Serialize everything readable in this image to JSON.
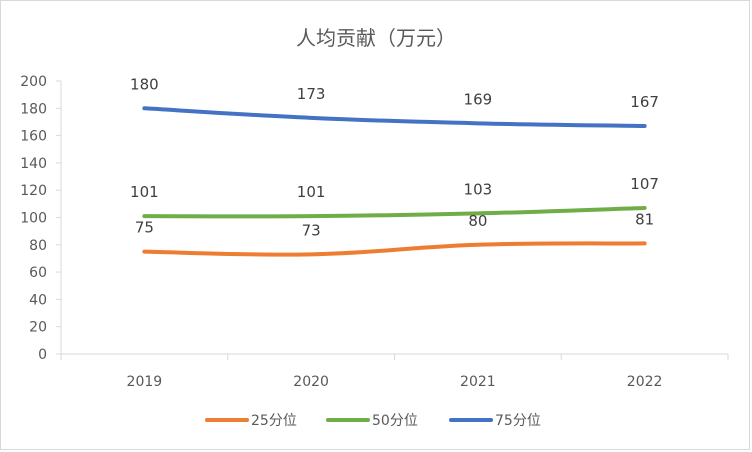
{
  "chart_data": {
    "type": "line",
    "title": "人均贡献（万元）",
    "categories": [
      "2019",
      "2020",
      "2021",
      "2022"
    ],
    "ylim": [
      0,
      200
    ],
    "yticks": [
      0,
      20,
      40,
      60,
      80,
      100,
      120,
      140,
      160,
      180,
      200
    ],
    "grid": false,
    "legend_position": "bottom",
    "series": [
      {
        "name": "25分位",
        "color": "#ED7D31",
        "values": [
          75,
          73,
          80,
          81
        ]
      },
      {
        "name": "50分位",
        "color": "#70AD47",
        "values": [
          101,
          101,
          103,
          107
        ]
      },
      {
        "name": "75分位",
        "color": "#4472C4",
        "values": [
          180,
          173,
          169,
          167
        ]
      }
    ]
  }
}
